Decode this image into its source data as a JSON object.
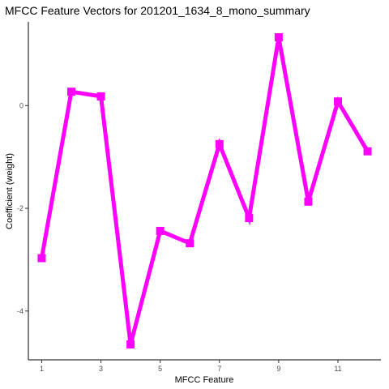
{
  "chart_data": {
    "type": "line",
    "title": "MFCC Feature Vectors for 201201_1634_8_mono_summary",
    "xlabel": "MFCC Feature",
    "ylabel": "Coefficient (weight)",
    "x": [
      1,
      2,
      3,
      4,
      5,
      6,
      7,
      8,
      9,
      10,
      11,
      12
    ],
    "series": [
      {
        "values": [
          -2.97,
          0.27,
          0.18,
          -4.65,
          -2.44,
          -2.68,
          -0.75,
          -2.19,
          1.33,
          -1.87,
          0.08,
          -0.89
        ]
      }
    ],
    "xticks": [
      "1",
      "3",
      "5",
      "7",
      "9",
      "11"
    ],
    "yticks": [
      "-4",
      "-2",
      "0"
    ],
    "xlim": [
      0.55,
      12.45
    ],
    "ylim": [
      -4.95,
      1.63
    ],
    "grid": false,
    "line_color": "#FF00FF"
  }
}
